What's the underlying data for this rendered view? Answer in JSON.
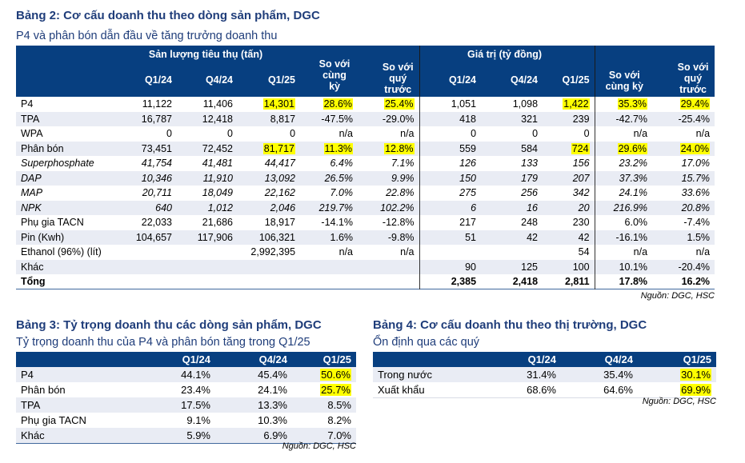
{
  "table2": {
    "title": "Bảng 2: Cơ cấu doanh thu theo dòng sản phẩm, DGC",
    "subtitle": "P4 và phân bón dẫn đầu về tăng trưởng doanh thu",
    "group_volume": "Sản lượng tiêu thụ (tấn)",
    "group_value": "Giá trị (tỷ đồng)",
    "columns": [
      "Q1/24",
      "Q4/24",
      "Q1/25",
      "So với cùng kỳ",
      "So với quý trước",
      "Q1/24",
      "Q4/24",
      "Q1/25",
      "So với cùng kỳ",
      "So với quý trước"
    ],
    "rows": [
      {
        "label": "P4",
        "cells": [
          "11,122",
          "11,406",
          "14,301",
          "28.6%",
          "25.4%",
          "1,051",
          "1,098",
          "1,422",
          "35.3%",
          "29.4%"
        ],
        "highlight": [
          2,
          3,
          4,
          7,
          8,
          9
        ]
      },
      {
        "label": "TPA",
        "cells": [
          "16,787",
          "12,418",
          "8,817",
          "-47.5%",
          "-29.0%",
          "418",
          "321",
          "239",
          "-42.7%",
          "-25.4%"
        ],
        "highlight": []
      },
      {
        "label": "WPA",
        "cells": [
          "0",
          "0",
          "0",
          "n/a",
          "n/a",
          "0",
          "0",
          "0",
          "n/a",
          "n/a"
        ],
        "highlight": []
      },
      {
        "label": "Phân bón",
        "cells": [
          "73,451",
          "72,452",
          "81,717",
          "11.3%",
          "12.8%",
          "559",
          "584",
          "724",
          "29.6%",
          "24.0%"
        ],
        "highlight": [
          2,
          3,
          4,
          7,
          8,
          9
        ]
      },
      {
        "label": "Superphosphate",
        "cells": [
          "41,754",
          "41,481",
          "44,417",
          "6.4%",
          "7.1%",
          "126",
          "133",
          "156",
          "23.2%",
          "17.0%"
        ],
        "highlight": [],
        "italic": true
      },
      {
        "label": "DAP",
        "cells": [
          "10,346",
          "11,910",
          "13,092",
          "26.5%",
          "9.9%",
          "150",
          "179",
          "207",
          "37.3%",
          "15.7%"
        ],
        "highlight": [],
        "italic": true
      },
      {
        "label": "MAP",
        "cells": [
          "20,711",
          "18,049",
          "22,162",
          "7.0%",
          "22.8%",
          "275",
          "256",
          "342",
          "24.1%",
          "33.6%"
        ],
        "highlight": [],
        "italic": true
      },
      {
        "label": "NPK",
        "cells": [
          "640",
          "1,012",
          "2,046",
          "219.7%",
          "102.2%",
          "6",
          "16",
          "20",
          "216.9%",
          "20.8%"
        ],
        "highlight": [],
        "italic": true
      },
      {
        "label": "Phụ gia TACN",
        "cells": [
          "22,033",
          "21,686",
          "18,917",
          "-14.1%",
          "-12.8%",
          "217",
          "248",
          "230",
          "6.0%",
          "-7.4%"
        ],
        "highlight": []
      },
      {
        "label": "Pin (Kwh)",
        "cells": [
          "104,657",
          "117,906",
          "106,321",
          "1.6%",
          "-9.8%",
          "51",
          "42",
          "42",
          "-16.1%",
          "1.5%"
        ],
        "highlight": []
      },
      {
        "label": "Ethanol (96%) (lít)",
        "cells": [
          "",
          "",
          "2,992,395",
          "n/a",
          "n/a",
          "",
          "",
          "54",
          "n/a",
          "n/a"
        ],
        "highlight": []
      },
      {
        "label": "Khác",
        "cells": [
          "",
          "",
          "",
          "",
          "",
          "90",
          "125",
          "100",
          "10.1%",
          "-20.4%"
        ],
        "highlight": []
      },
      {
        "label": "Tổng",
        "cells": [
          "",
          "",
          "",
          "",
          "",
          "2,385",
          "2,418",
          "2,811",
          "17.8%",
          "16.2%"
        ],
        "highlight": [],
        "bold": true
      }
    ],
    "source": "Nguồn: DGC, HSC"
  },
  "table3": {
    "title": "Bảng 3: Tỷ trọng doanh thu các dòng sản phẩm, DGC",
    "subtitle": "Tỷ trọng doanh thu của P4 và phân bón tăng trong Q1/25",
    "columns": [
      "Q1/24",
      "Q4/24",
      "Q1/25"
    ],
    "rows": [
      {
        "label": "P4",
        "cells": [
          "44.1%",
          "45.4%",
          "50.6%"
        ],
        "highlight": [
          2
        ]
      },
      {
        "label": "Phân bón",
        "cells": [
          "23.4%",
          "24.1%",
          "25.7%"
        ],
        "highlight": [
          2
        ]
      },
      {
        "label": "TPA",
        "cells": [
          "17.5%",
          "13.3%",
          "8.5%"
        ],
        "highlight": []
      },
      {
        "label": "Phụ gia TACN",
        "cells": [
          "9.1%",
          "10.3%",
          "8.2%"
        ],
        "highlight": []
      },
      {
        "label": "Khác",
        "cells": [
          "5.9%",
          "6.9%",
          "7.0%"
        ],
        "highlight": []
      }
    ],
    "source": "Nguồn: DGC, HSC"
  },
  "table4": {
    "title": "Bảng 4: Cơ cấu doanh thu theo thị trường, DGC",
    "subtitle": "Ổn định qua các quý",
    "columns": [
      "Q1/24",
      "Q4/24",
      "Q1/25"
    ],
    "rows": [
      {
        "label": "Trong nước",
        "cells": [
          "31.4%",
          "35.4%",
          "30.1%"
        ],
        "highlight": [
          2
        ]
      },
      {
        "label": "Xuất khẩu",
        "cells": [
          "68.6%",
          "64.6%",
          "69.9%"
        ],
        "highlight": [
          2
        ]
      }
    ],
    "source": "Nguồn: DGC, HSC"
  },
  "colors": {
    "header_bg": "#073f80",
    "title_text": "#1f3d7a",
    "stripe": "#e9ecf4",
    "highlight": "#ffff00"
  }
}
